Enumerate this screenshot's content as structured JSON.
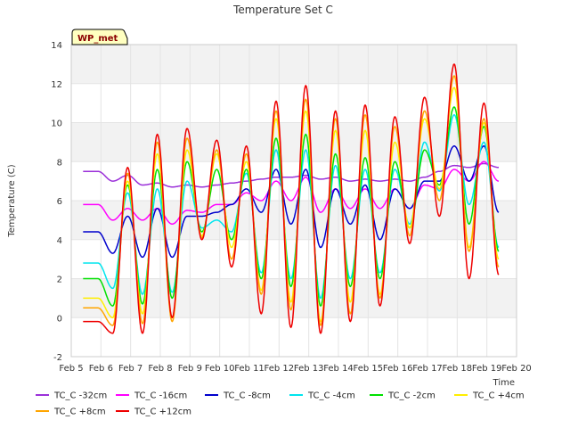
{
  "chart_data": {
    "type": "line",
    "title": "Temperature Set C",
    "xlabel": "Time",
    "ylabel": "Temperature (C)",
    "ylim": [
      -2,
      14
    ],
    "yticks": [
      -2,
      0,
      2,
      4,
      6,
      8,
      10,
      12,
      14
    ],
    "xlim": [
      5,
      20
    ],
    "xticks": [
      5,
      6,
      7,
      8,
      9,
      10,
      11,
      12,
      13,
      14,
      15,
      16,
      17,
      18,
      19,
      20
    ],
    "xtick_labels": [
      "Feb 5",
      "Feb 6",
      "Feb 7",
      "Feb 8",
      "Feb 9",
      "Feb 10",
      "Feb 11",
      "Feb 12",
      "Feb 13",
      "Feb 14",
      "Feb 15",
      "Feb 16",
      "Feb 17",
      "Feb 18",
      "Feb 19",
      "Feb 20"
    ],
    "x_unit": "day of February",
    "grid": true,
    "legend_position": "bottom",
    "badge": "WP_met",
    "days": [
      5.4,
      6.4,
      7.4,
      8.4,
      9.4,
      10.4,
      11.4,
      12.4,
      13.4,
      14.4,
      15.4,
      16.4,
      17.4,
      18.4,
      19.4
    ],
    "series": [
      {
        "name": "TC_C -32cm",
        "color": "#9b30d9",
        "x": [
          5.4,
          6.4,
          7.4,
          8.4,
          9.4,
          10.4,
          11.4,
          12.4,
          13.4,
          14.4,
          15.4,
          16.4,
          17.4,
          18.4,
          19.4
        ],
        "min": [
          7.5,
          7.0,
          6.8,
          6.7,
          6.7,
          6.9,
          7.1,
          7.2,
          7.1,
          7.0,
          7.0,
          7.0,
          7.5,
          7.7,
          7.7
        ],
        "max": [
          7.5,
          7.3,
          6.9,
          6.8,
          6.8,
          7.0,
          7.2,
          7.3,
          7.2,
          7.1,
          7.1,
          7.2,
          7.8,
          7.9,
          7.8
        ]
      },
      {
        "name": "TC_C -16cm",
        "color": "#ff00ff",
        "x": [
          5.4,
          6.4,
          7.4,
          8.4,
          9.4,
          10.4,
          11.4,
          12.4,
          13.4,
          14.4,
          15.4,
          16.4,
          17.4,
          18.4,
          19.4
        ],
        "min": [
          5.8,
          5.0,
          5.0,
          4.8,
          5.4,
          5.8,
          6.0,
          6.0,
          5.4,
          5.6,
          5.6,
          5.6,
          6.6,
          7.0,
          7.0
        ],
        "max": [
          5.8,
          5.6,
          5.6,
          5.5,
          5.8,
          6.4,
          7.0,
          7.2,
          6.6,
          6.6,
          6.6,
          6.8,
          7.6,
          8.0,
          7.6
        ]
      },
      {
        "name": "TC_C -8cm",
        "color": "#0000cc",
        "x": [
          5.4,
          6.4,
          7.4,
          8.4,
          9.4,
          10.4,
          11.4,
          12.4,
          13.4,
          14.4,
          15.4,
          16.4,
          17.4,
          18.4,
          19.4
        ],
        "min": [
          4.4,
          3.3,
          3.1,
          3.1,
          5.2,
          5.8,
          5.4,
          4.8,
          3.6,
          4.8,
          4.0,
          5.6,
          7.0,
          7.0,
          5.4
        ],
        "max": [
          4.4,
          5.2,
          5.6,
          5.2,
          5.4,
          6.6,
          7.6,
          7.6,
          6.6,
          6.8,
          6.6,
          7.0,
          8.8,
          8.8,
          7.0
        ]
      },
      {
        "name": "TC_C -4cm",
        "color": "#00e5ee",
        "x": [
          5.4,
          6.4,
          7.4,
          8.4,
          9.4,
          10.4,
          11.4,
          12.4,
          13.4,
          14.4,
          15.4,
          16.4,
          17.4,
          18.4,
          19.4
        ],
        "min": [
          2.8,
          1.5,
          1.2,
          1.3,
          4.6,
          4.4,
          2.3,
          2.0,
          1.0,
          2.0,
          2.3,
          4.8,
          6.5,
          5.8,
          3.6
        ],
        "max": [
          2.8,
          6.4,
          6.6,
          7.0,
          5.0,
          7.4,
          8.6,
          8.6,
          7.8,
          7.6,
          7.6,
          9.0,
          10.4,
          9.0,
          8.4
        ]
      },
      {
        "name": "TC_C -2cm",
        "color": "#00e000",
        "x": [
          5.4,
          6.4,
          7.4,
          8.4,
          9.4,
          10.4,
          11.4,
          12.4,
          13.4,
          14.4,
          15.4,
          16.4,
          17.4,
          18.4,
          19.4
        ],
        "min": [
          2.0,
          0.6,
          0.7,
          1.0,
          4.4,
          4.0,
          2.0,
          1.6,
          0.6,
          1.6,
          2.0,
          4.6,
          6.8,
          4.8,
          3.4
        ],
        "max": [
          2.0,
          6.8,
          7.6,
          8.0,
          7.6,
          7.6,
          9.2,
          9.4,
          8.4,
          8.2,
          8.0,
          8.6,
          10.8,
          9.8,
          8.6
        ]
      },
      {
        "name": "TC_C +4cm",
        "color": "#ffee00",
        "x": [
          5.4,
          6.4,
          7.4,
          8.4,
          9.4,
          10.4,
          11.4,
          12.4,
          13.4,
          14.4,
          15.4,
          16.4,
          17.4,
          18.4,
          19.4
        ],
        "min": [
          1.0,
          0.0,
          0.2,
          0.0,
          4.2,
          3.6,
          1.4,
          0.8,
          -0.2,
          0.8,
          1.2,
          4.6,
          6.6,
          3.6,
          3.0
        ],
        "max": [
          1.0,
          7.0,
          8.4,
          8.6,
          8.4,
          8.0,
          10.2,
          10.6,
          9.6,
          9.6,
          9.0,
          10.2,
          11.8,
          10.0,
          10.2
        ]
      },
      {
        "name": "TC_C +8cm",
        "color": "#ffa500",
        "x": [
          5.4,
          6.4,
          7.4,
          8.4,
          9.4,
          10.4,
          11.4,
          12.4,
          13.4,
          14.4,
          15.4,
          16.4,
          17.4,
          18.4,
          19.4
        ],
        "min": [
          0.5,
          -0.4,
          -0.3,
          -0.2,
          4.1,
          3.0,
          1.2,
          0.4,
          -0.4,
          0.2,
          1.0,
          4.2,
          6.0,
          3.4,
          2.6
        ],
        "max": [
          0.5,
          7.4,
          9.0,
          9.2,
          8.6,
          8.4,
          10.6,
          11.2,
          10.2,
          10.4,
          9.8,
          10.6,
          12.4,
          10.2,
          10.4
        ]
      },
      {
        "name": "TC_C +12cm",
        "color": "#ee0000",
        "x": [
          5.4,
          6.4,
          7.4,
          8.4,
          9.4,
          10.4,
          11.4,
          12.4,
          13.4,
          14.4,
          15.4,
          16.4,
          17.4,
          18.4,
          19.4
        ],
        "min": [
          -0.2,
          -0.8,
          -0.8,
          0.0,
          4.0,
          2.6,
          0.2,
          -0.5,
          -0.8,
          -0.2,
          0.6,
          3.8,
          5.2,
          2.0,
          2.2
        ],
        "max": [
          -0.2,
          7.7,
          9.4,
          9.7,
          9.1,
          8.8,
          11.1,
          11.9,
          10.6,
          10.9,
          10.3,
          11.3,
          13.0,
          11.0,
          10.8
        ]
      }
    ]
  }
}
